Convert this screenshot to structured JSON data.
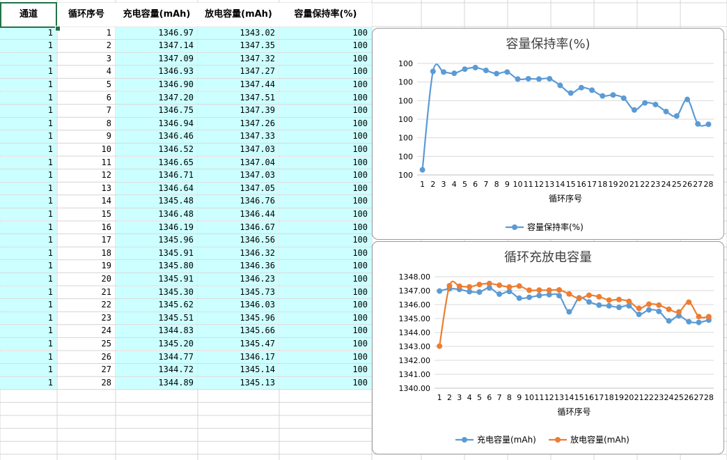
{
  "sheet": {
    "headers": [
      "通道",
      "循环序号",
      "充电容量(mAh)",
      "放电容量(mAh)",
      "容量保持率(%)"
    ],
    "rows": [
      [
        "1",
        "1",
        "1346.97",
        "1343.02",
        "100"
      ],
      [
        "1",
        "2",
        "1347.14",
        "1347.35",
        "100"
      ],
      [
        "1",
        "3",
        "1347.09",
        "1347.32",
        "100"
      ],
      [
        "1",
        "4",
        "1346.93",
        "1347.27",
        "100"
      ],
      [
        "1",
        "5",
        "1346.90",
        "1347.44",
        "100"
      ],
      [
        "1",
        "6",
        "1347.20",
        "1347.51",
        "100"
      ],
      [
        "1",
        "7",
        "1346.75",
        "1347.39",
        "100"
      ],
      [
        "1",
        "8",
        "1346.94",
        "1347.26",
        "100"
      ],
      [
        "1",
        "9",
        "1346.46",
        "1347.33",
        "100"
      ],
      [
        "1",
        "10",
        "1346.52",
        "1347.03",
        "100"
      ],
      [
        "1",
        "11",
        "1346.65",
        "1347.04",
        "100"
      ],
      [
        "1",
        "12",
        "1346.71",
        "1347.03",
        "100"
      ],
      [
        "1",
        "13",
        "1346.64",
        "1347.05",
        "100"
      ],
      [
        "1",
        "14",
        "1345.48",
        "1346.76",
        "100"
      ],
      [
        "1",
        "15",
        "1346.48",
        "1346.44",
        "100"
      ],
      [
        "1",
        "16",
        "1346.19",
        "1346.67",
        "100"
      ],
      [
        "1",
        "17",
        "1345.96",
        "1346.56",
        "100"
      ],
      [
        "1",
        "18",
        "1345.91",
        "1346.32",
        "100"
      ],
      [
        "1",
        "19",
        "1345.80",
        "1346.36",
        "100"
      ],
      [
        "1",
        "20",
        "1345.91",
        "1346.23",
        "100"
      ],
      [
        "1",
        "21",
        "1345.30",
        "1345.73",
        "100"
      ],
      [
        "1",
        "22",
        "1345.62",
        "1346.03",
        "100"
      ],
      [
        "1",
        "23",
        "1345.51",
        "1345.96",
        "100"
      ],
      [
        "1",
        "24",
        "1344.83",
        "1345.66",
        "100"
      ],
      [
        "1",
        "25",
        "1345.20",
        "1345.47",
        "100"
      ],
      [
        "1",
        "26",
        "1344.77",
        "1346.17",
        "100"
      ],
      [
        "1",
        "27",
        "1344.72",
        "1345.14",
        "100"
      ],
      [
        "1",
        "28",
        "1344.89",
        "1345.13",
        "100"
      ]
    ]
  },
  "colors": {
    "series_blue": "#5b9bd5",
    "series_orange": "#ed7d31",
    "cell_fill": "#ccffff",
    "selection": "#217346"
  },
  "chart_data": [
    {
      "type": "line",
      "title": "容量保持率(%)",
      "xlabel": "循环序号",
      "ylabel": "",
      "x": [
        1,
        2,
        3,
        4,
        5,
        6,
        7,
        8,
        9,
        10,
        11,
        12,
        13,
        14,
        15,
        16,
        17,
        18,
        19,
        20,
        21,
        22,
        23,
        24,
        25,
        26,
        27,
        28
      ],
      "y_tick_labels": [
        "100",
        "100",
        "100",
        "100",
        "100",
        "100",
        "100"
      ],
      "grid": true,
      "legend_position": "bottom",
      "series": [
        {
          "name": "容量保持率(%)",
          "values": [
            99.706,
            100.015,
            100.013,
            100.009,
            100.022,
            100.027,
            100.018,
            100.008,
            100.013,
            99.991,
            99.992,
            99.991,
            99.992,
            99.971,
            99.947,
            99.964,
            99.956,
            99.938,
            99.941,
            99.931,
            99.894,
            99.916,
            99.911,
            99.889,
            99.875,
            99.927,
            99.85,
            99.849
          ]
        }
      ]
    },
    {
      "type": "line",
      "title": "循环充放电容量",
      "xlabel": "循环序号",
      "ylabel": "",
      "x": [
        1,
        2,
        3,
        4,
        5,
        6,
        7,
        8,
        9,
        10,
        11,
        12,
        13,
        14,
        15,
        16,
        17,
        18,
        19,
        20,
        21,
        22,
        23,
        24,
        25,
        26,
        27,
        28
      ],
      "ylim": [
        1340,
        1348
      ],
      "y_tick_labels": [
        "1348.00",
        "1347.00",
        "1346.00",
        "1345.00",
        "1344.00",
        "1343.00",
        "1342.00",
        "1341.00",
        "1340.00"
      ],
      "grid": true,
      "legend_position": "bottom",
      "series": [
        {
          "name": "充电容量(mAh)",
          "values": [
            1346.97,
            1347.14,
            1347.09,
            1346.93,
            1346.9,
            1347.2,
            1346.75,
            1346.94,
            1346.46,
            1346.52,
            1346.65,
            1346.71,
            1346.64,
            1345.48,
            1346.48,
            1346.19,
            1345.96,
            1345.91,
            1345.8,
            1345.91,
            1345.3,
            1345.62,
            1345.51,
            1344.83,
            1345.2,
            1344.77,
            1344.72,
            1344.89
          ]
        },
        {
          "name": "放电容量(mAh)",
          "values": [
            1343.02,
            1347.35,
            1347.32,
            1347.27,
            1347.44,
            1347.51,
            1347.39,
            1347.26,
            1347.33,
            1347.03,
            1347.04,
            1347.03,
            1347.05,
            1346.76,
            1346.44,
            1346.67,
            1346.56,
            1346.32,
            1346.36,
            1346.23,
            1345.73,
            1346.03,
            1345.96,
            1345.66,
            1345.47,
            1346.17,
            1345.14,
            1345.13
          ]
        }
      ]
    }
  ]
}
